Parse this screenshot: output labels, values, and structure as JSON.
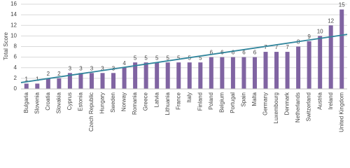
{
  "chart_data": {
    "type": "bar",
    "y_label": "Total  Score",
    "categories": [
      "Bulgaria",
      "Slovenia",
      "Croatia",
      "Slovakia",
      "Cyprus",
      "Estonia",
      "Czech Republic",
      "Hungary",
      "Sweden",
      "Norway",
      "Romania",
      "Greece",
      "Latvia",
      "Lithuania",
      "France",
      "Italy",
      "Finland",
      "Poland",
      "Belgium",
      "Portugal",
      "Spain",
      "Malta",
      "Germany",
      "Luxembourg",
      "Denmark",
      "Netherlands",
      "Switzerland",
      "Austria",
      "Ireland",
      "United Kingdom"
    ],
    "values": [
      1,
      1,
      2,
      2,
      3,
      3,
      3,
      3,
      3,
      4,
      5,
      5,
      5,
      5,
      5,
      5,
      5,
      6,
      6,
      6,
      6,
      6,
      7,
      7,
      7,
      8,
      9,
      10,
      12,
      15
    ],
    "color": "#8064a2",
    "ylim": [
      0,
      16
    ],
    "yticks": [
      0,
      2,
      4,
      6,
      8,
      10,
      12,
      14,
      16
    ],
    "grid": true,
    "trendline": {
      "start": 1.2,
      "end": 10.3,
      "color": "#31859c"
    }
  }
}
